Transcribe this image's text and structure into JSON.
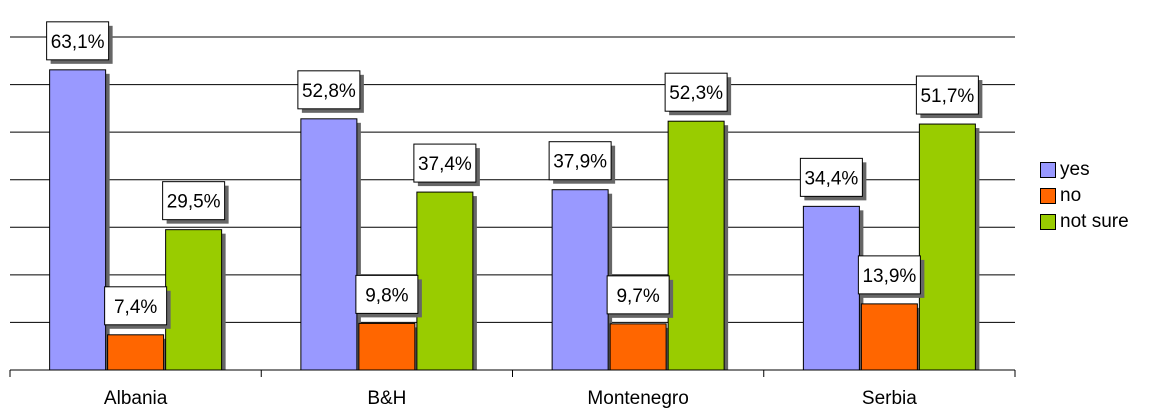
{
  "chart_data": {
    "type": "bar",
    "categories": [
      "Albania",
      "B&H",
      "Montenegro",
      "Serbia"
    ],
    "series": [
      {
        "name": "yes",
        "color": "#9999ff",
        "values": [
          63.1,
          52.8,
          37.9,
          34.4
        ],
        "labels": [
          "63,1%",
          "52,8%",
          "37,9%",
          "34,4%"
        ]
      },
      {
        "name": "no",
        "color": "#ff6600",
        "values": [
          7.4,
          9.8,
          9.7,
          13.9
        ],
        "labels": [
          "7,4%",
          "9,8%",
          "9,7%",
          "13,9%"
        ]
      },
      {
        "name": "not sure",
        "color": "#99cc00",
        "values": [
          29.5,
          37.4,
          52.3,
          51.7
        ],
        "labels": [
          "29,5%",
          "37,4%",
          "52,3%",
          "51,7%"
        ]
      }
    ],
    "ylim": [
      0,
      70
    ],
    "grid": true,
    "legend": "right"
  }
}
